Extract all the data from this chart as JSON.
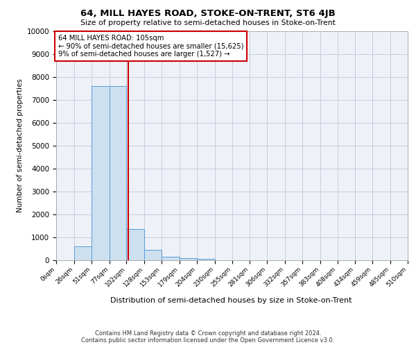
{
  "title": "64, MILL HAYES ROAD, STOKE-ON-TRENT, ST6 4JB",
  "subtitle": "Size of property relative to semi-detached houses in Stoke-on-Trent",
  "xlabel": "Distribution of semi-detached houses by size in Stoke-on-Trent",
  "ylabel": "Number of semi-detached properties",
  "footnote1": "Contains HM Land Registry data © Crown copyright and database right 2024.",
  "footnote2": "Contains public sector information licensed under the Open Government Licence v3.0.",
  "bin_edges": [
    0,
    26,
    51,
    77,
    102,
    128,
    153,
    179,
    204,
    230,
    255,
    281,
    306,
    332,
    357,
    383,
    408,
    434,
    459,
    485,
    510
  ],
  "bin_heights": [
    0,
    600,
    7600,
    7600,
    1350,
    450,
    150,
    100,
    75,
    0,
    0,
    0,
    0,
    0,
    0,
    0,
    0,
    0,
    0,
    0
  ],
  "property_size": 105,
  "annotation_title": "64 MILL HAYES ROAD: 105sqm",
  "annotation_line1": "← 90% of semi-detached houses are smaller (15,625)",
  "annotation_line2": "9% of semi-detached houses are larger (1,527) →",
  "bar_color": "#cce0f0",
  "bar_edge_color": "#5b9bd5",
  "red_line_color": "#cc0000",
  "annotation_box_color": "#ffffff",
  "annotation_box_edge": "#cc0000",
  "ylim": [
    0,
    10000
  ],
  "yticks": [
    0,
    1000,
    2000,
    3000,
    4000,
    5000,
    6000,
    7000,
    8000,
    9000,
    10000
  ],
  "grid_color": "#c0c8d8",
  "background_color": "#eef2f8"
}
